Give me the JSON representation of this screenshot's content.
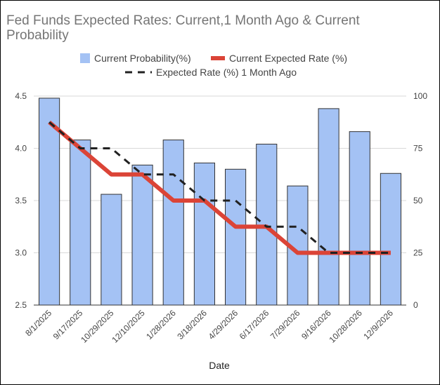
{
  "chart_data": {
    "type": "bar+line",
    "title": "Fed Funds Expected Rates: Current,1 Month Ago & Current Probability",
    "xlabel": "Date",
    "ylabel_left": "",
    "ylabel_right": "",
    "categories": [
      "8/1/2025",
      "9/17/2025",
      "10/29/2025",
      "12/10/2025",
      "1/28/2026",
      "3/18/2026",
      "4/29/2026",
      "6/17/2026",
      "7/29/2026",
      "9/16/2026",
      "10/28/2026",
      "12/9/2026"
    ],
    "left_axis": {
      "min": 2.5,
      "max": 4.5,
      "ticks": [
        "2.5",
        "3.0",
        "3.5",
        "4.0",
        "4.5"
      ],
      "tick_values": [
        2.5,
        3.0,
        3.5,
        4.0,
        4.5
      ]
    },
    "right_axis": {
      "min": 0,
      "max": 100,
      "ticks": [
        "0",
        "25",
        "50",
        "75",
        "100"
      ],
      "tick_values": [
        0,
        25,
        50,
        75,
        100
      ]
    },
    "series": [
      {
        "name": "Current Probability(%)",
        "kind": "bar",
        "axis": "right",
        "color": "#a4c2f4",
        "values": [
          99,
          79,
          53,
          67,
          79,
          68,
          65,
          77,
          57,
          94,
          83,
          63
        ]
      },
      {
        "name": "Current Expected Rate (%)",
        "kind": "line",
        "axis": "left",
        "color": "#db4437",
        "values": [
          4.25,
          4.0,
          3.75,
          3.75,
          3.5,
          3.5,
          3.25,
          3.25,
          3.0,
          3.0,
          3.0,
          3.0
        ]
      },
      {
        "name": "Expected Rate (%) 1 Month Ago",
        "kind": "dashed-line",
        "axis": "left",
        "color": "#212121",
        "values": [
          4.25,
          4.0,
          4.0,
          3.75,
          3.75,
          3.5,
          3.5,
          3.25,
          3.25,
          3.0,
          3.0,
          3.0
        ]
      }
    ],
    "legend_position": "top",
    "grid": true
  }
}
